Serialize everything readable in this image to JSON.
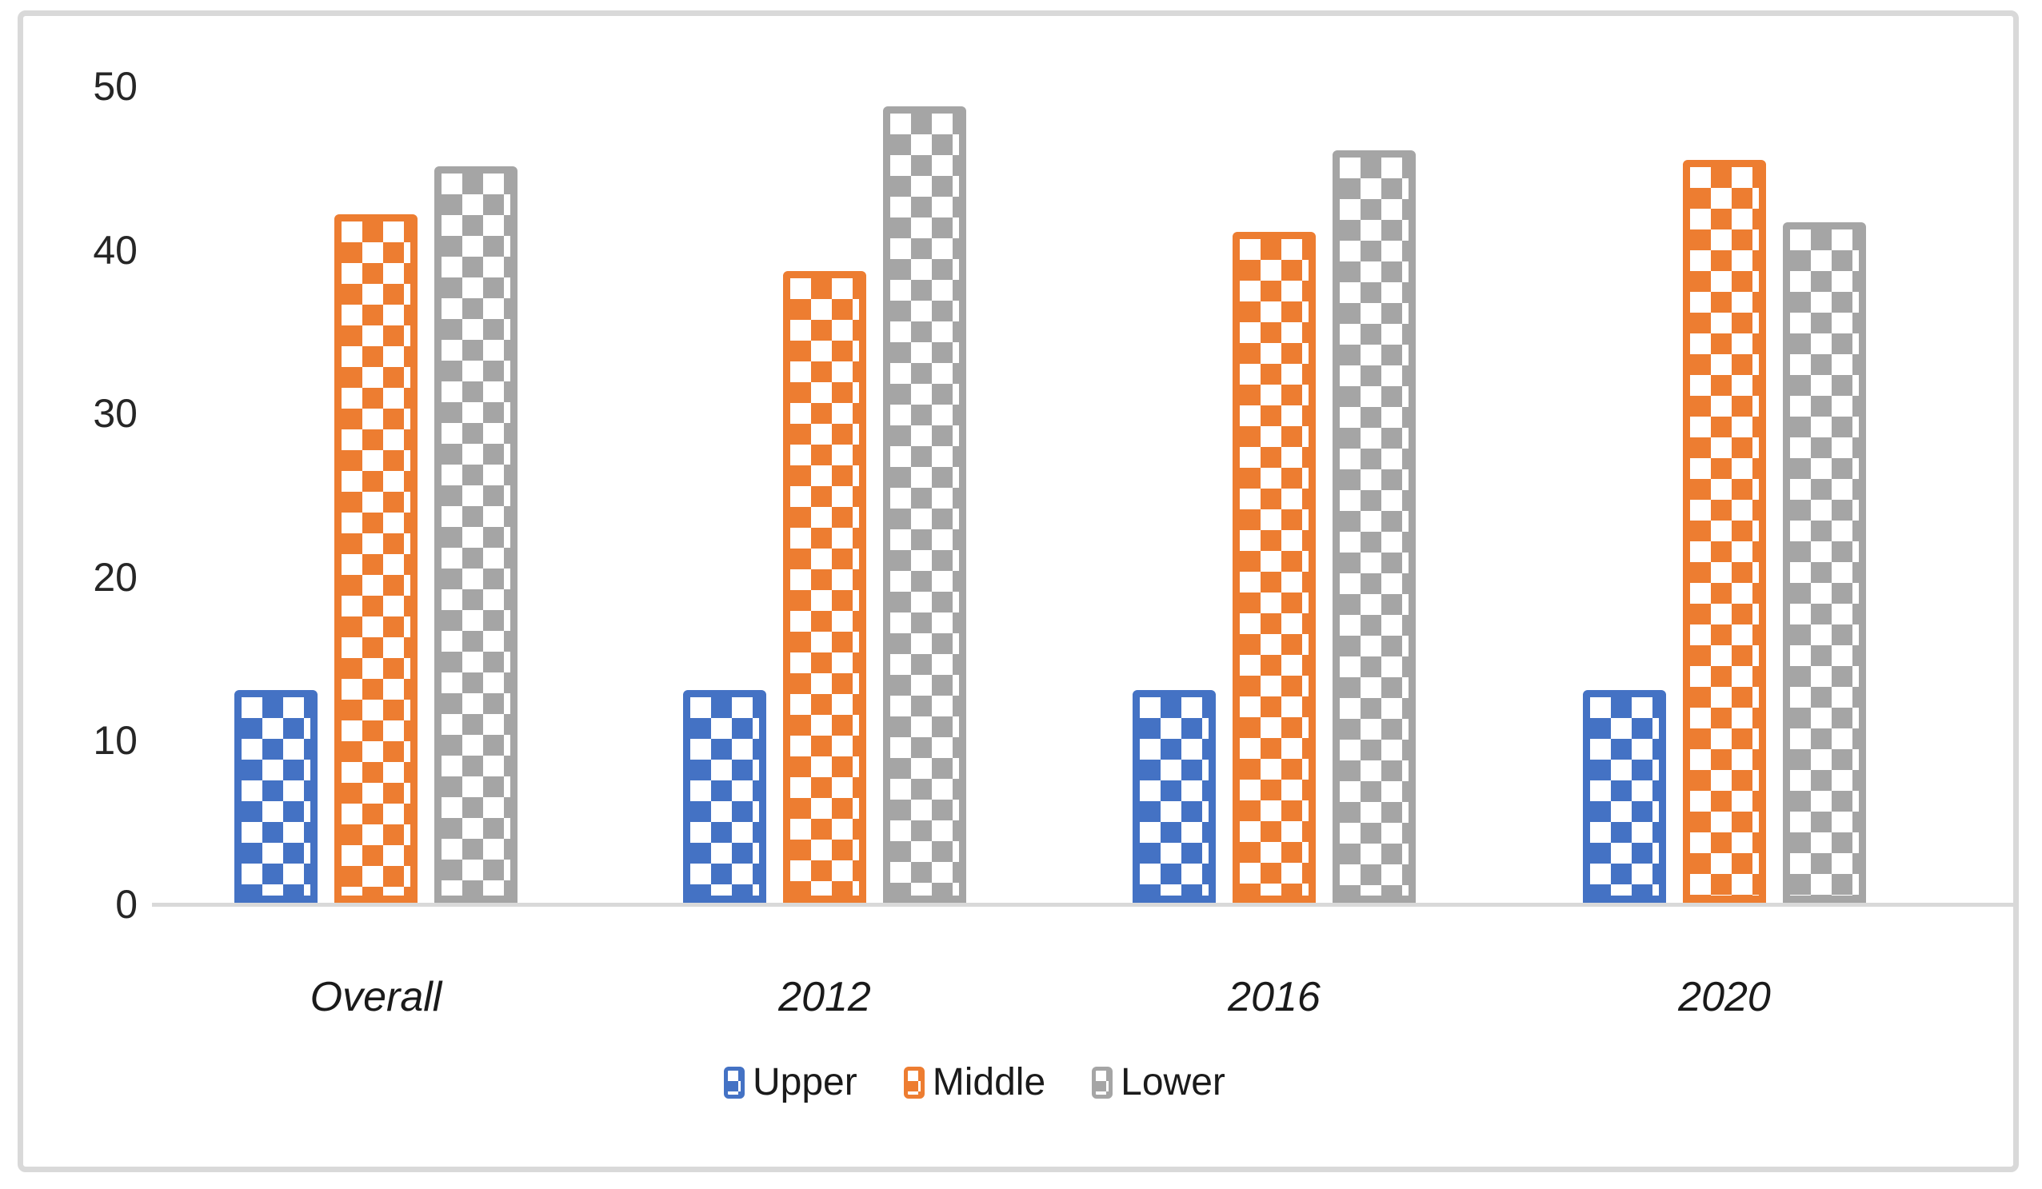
{
  "chart_data": {
    "type": "bar",
    "title": "",
    "xlabel": "",
    "ylabel": "",
    "categories": [
      "Overall",
      "2012",
      "2016",
      "2020"
    ],
    "series": [
      {
        "name": "Upper",
        "color": "#4472C4",
        "values": [
          13,
          13,
          13,
          13
        ]
      },
      {
        "name": "Middle",
        "color": "#ED7D31",
        "values": [
          42.1,
          38.6,
          41,
          45.4
        ]
      },
      {
        "name": "Lower",
        "color": "#A5A5A5",
        "values": [
          45,
          48.7,
          46,
          41.6
        ]
      }
    ],
    "ylim": [
      0,
      50
    ],
    "yticks": [
      0,
      10,
      20,
      30,
      40,
      50
    ],
    "grid": false,
    "legend_position": "bottom",
    "bar_fill_pattern": "checkerboard",
    "pattern_background": "#FFFFFF",
    "axis_line_color": "#D9D9D9",
    "frame_color": "#D9D9D9",
    "tick_label_color": "#262626",
    "category_label_style": "italic"
  }
}
